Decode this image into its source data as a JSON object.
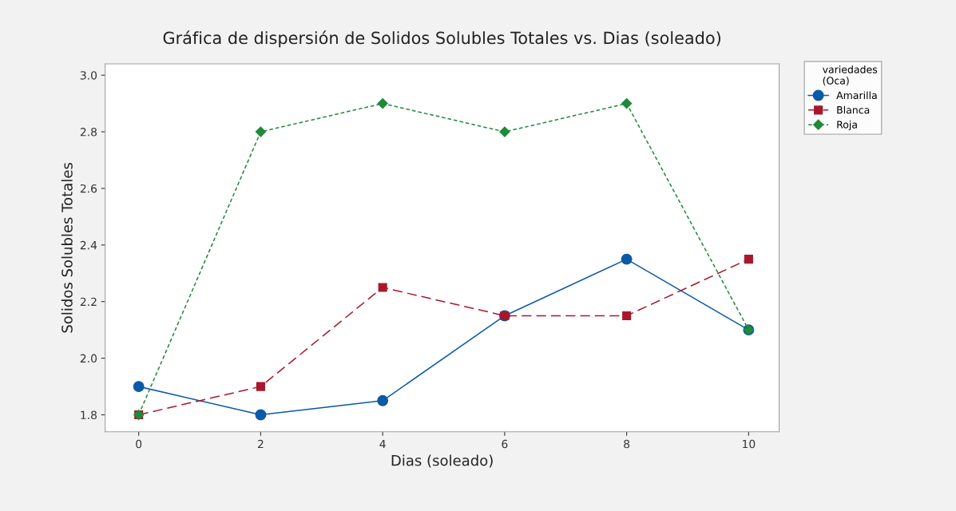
{
  "chart_data": {
    "type": "line",
    "title": "Gráfica de dispersión de Solidos Solubles Totales vs. Dias (soleado)",
    "xlabel": "Dias (soleado)",
    "ylabel": "Solidos Solubles Totales",
    "legend_title": "variedades\n(Oca)",
    "legend": "right",
    "grid": false,
    "x": [
      0,
      2,
      4,
      6,
      8,
      10
    ],
    "xlim": [
      -0.55,
      10.5
    ],
    "xticks": [
      0,
      2,
      4,
      6,
      8,
      10
    ],
    "ylim": [
      1.74,
      3.04
    ],
    "yticks": [
      1.8,
      {
        "value": 2,
        "label": "2.0"
      },
      2.2,
      2.4,
      2.6,
      2.8,
      {
        "value": 3,
        "label": "3.0"
      }
    ],
    "series": [
      {
        "name": "Amarilla",
        "color": "#0a5aa8",
        "marker": "circle",
        "line_style": "solid",
        "values": [
          1.9,
          1.8,
          1.85,
          2.15,
          2.35,
          2.1
        ]
      },
      {
        "name": "Blanca",
        "color": "#a8182c",
        "marker": "square",
        "line_style": "dashed",
        "values": [
          1.8,
          1.9,
          2.25,
          2.15,
          2.15,
          2.35
        ]
      },
      {
        "name": "Roja",
        "color": "#1f8a3a",
        "marker": "diamond",
        "line_style": "dotted",
        "values": [
          1.8,
          2.8,
          2.9,
          2.8,
          2.9,
          2.1
        ]
      }
    ]
  }
}
